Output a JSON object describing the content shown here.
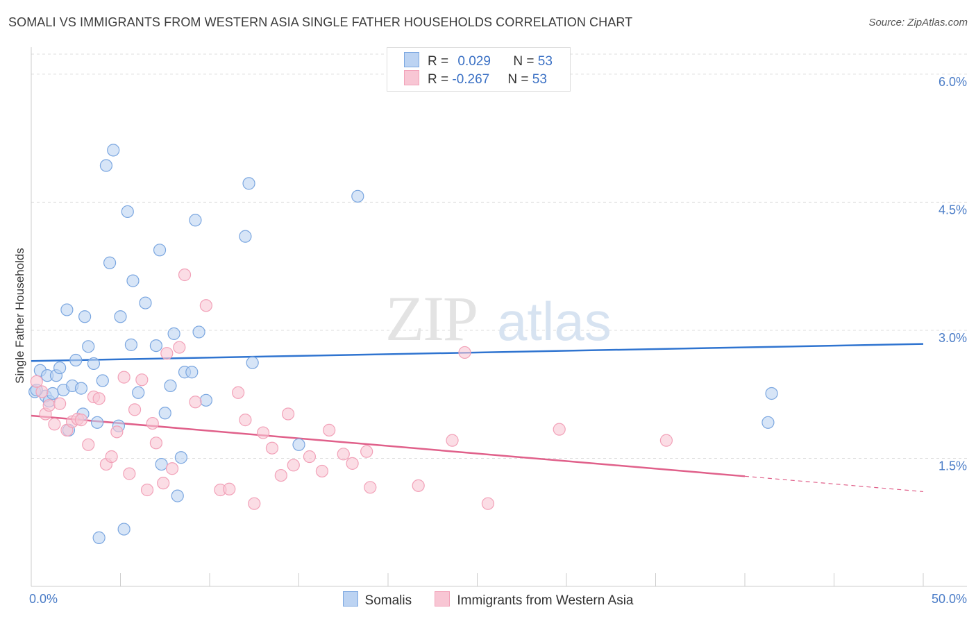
{
  "title": "SOMALI VS IMMIGRANTS FROM WESTERN ASIA SINGLE FATHER HOUSEHOLDS CORRELATION CHART",
  "source": "Source: ZipAtlas.com",
  "watermark": {
    "zip": "ZIP",
    "atlas": "atlas"
  },
  "legend": {
    "rows": [
      {
        "r_label": "R = ",
        "r_value": "0.029",
        "n_label": "N = ",
        "n_value": "53"
      },
      {
        "r_label": "R = ",
        "r_value": "-0.267",
        "n_label": "N = ",
        "n_value": "53"
      }
    ]
  },
  "chart_data": {
    "type": "scatter",
    "ylabel": "Single Father Households",
    "xlim": [
      0,
      50
    ],
    "ylim": [
      0,
      6.3
    ],
    "x_tick_labels": [
      {
        "value": 0,
        "label": "0.0%"
      },
      {
        "value": 50,
        "label": "50.0%"
      }
    ],
    "y_tick_labels": [
      {
        "value": 1.5,
        "label": "1.5%"
      },
      {
        "value": 3.0,
        "label": "3.0%"
      },
      {
        "value": 4.5,
        "label": "4.5%"
      },
      {
        "value": 6.0,
        "label": "6.0%"
      }
    ],
    "grid": "horizontal dashed",
    "legend_position": "top-center",
    "series": [
      {
        "name": "Somalis",
        "color": "#7aa6e0",
        "fill": "#bcd3f2",
        "line_color": "#2f74d0",
        "trend": {
          "x0": 0,
          "y0": 2.64,
          "x1": 50,
          "y1": 2.84
        },
        "points": [
          [
            0.2,
            2.28
          ],
          [
            0.5,
            2.53
          ],
          [
            0.8,
            2.23
          ],
          [
            0.9,
            2.47
          ],
          [
            1.0,
            2.17
          ],
          [
            1.2,
            2.26
          ],
          [
            1.4,
            2.47
          ],
          [
            1.6,
            2.56
          ],
          [
            1.8,
            2.3
          ],
          [
            2.0,
            3.24
          ],
          [
            2.1,
            1.83
          ],
          [
            2.3,
            2.35
          ],
          [
            2.5,
            2.65
          ],
          [
            2.8,
            2.32
          ],
          [
            2.9,
            2.02
          ],
          [
            3.0,
            3.16
          ],
          [
            3.2,
            2.81
          ],
          [
            3.5,
            2.61
          ],
          [
            3.7,
            1.92
          ],
          [
            3.8,
            0.57
          ],
          [
            4.0,
            2.41
          ],
          [
            4.2,
            4.93
          ],
          [
            4.4,
            3.79
          ],
          [
            4.6,
            5.11
          ],
          [
            4.9,
            1.88
          ],
          [
            5.0,
            3.16
          ],
          [
            5.2,
            0.67
          ],
          [
            5.4,
            4.39
          ],
          [
            5.6,
            2.83
          ],
          [
            5.7,
            3.58
          ],
          [
            6.0,
            2.27
          ],
          [
            6.4,
            3.32
          ],
          [
            7.0,
            2.82
          ],
          [
            7.2,
            3.94
          ],
          [
            7.3,
            1.43
          ],
          [
            7.5,
            2.03
          ],
          [
            7.8,
            2.35
          ],
          [
            8.0,
            2.96
          ],
          [
            8.2,
            1.06
          ],
          [
            8.4,
            1.51
          ],
          [
            8.6,
            2.51
          ],
          [
            9.0,
            2.51
          ],
          [
            9.2,
            4.29
          ],
          [
            9.4,
            2.98
          ],
          [
            9.8,
            2.18
          ],
          [
            12.0,
            4.1
          ],
          [
            12.2,
            4.72
          ],
          [
            12.4,
            2.62
          ],
          [
            15.0,
            1.66
          ],
          [
            18.3,
            4.57
          ],
          [
            41.3,
            1.92
          ],
          [
            41.5,
            2.26
          ],
          [
            0.3,
            2.3
          ]
        ]
      },
      {
        "name": "Immigrants from Western Asia",
        "color": "#f2a1b8",
        "fill": "#f8c6d4",
        "line_color": "#e0608a",
        "trend": {
          "x0": 0,
          "y0": 2.0,
          "x1": 40,
          "y1": 1.29
        },
        "trend_dashed": {
          "x0": 40,
          "y0": 1.29,
          "x1": 50,
          "y1": 1.11
        },
        "points": [
          [
            0.3,
            2.4
          ],
          [
            0.6,
            2.28
          ],
          [
            0.8,
            2.02
          ],
          [
            1.0,
            2.12
          ],
          [
            1.3,
            1.9
          ],
          [
            1.6,
            2.14
          ],
          [
            2.0,
            1.83
          ],
          [
            2.3,
            1.93
          ],
          [
            2.6,
            1.96
          ],
          [
            2.8,
            1.95
          ],
          [
            3.2,
            1.66
          ],
          [
            3.5,
            2.22
          ],
          [
            3.8,
            2.2
          ],
          [
            4.2,
            1.43
          ],
          [
            4.5,
            1.52
          ],
          [
            4.8,
            1.81
          ],
          [
            5.2,
            2.45
          ],
          [
            5.5,
            1.32
          ],
          [
            5.8,
            2.07
          ],
          [
            6.2,
            2.42
          ],
          [
            6.5,
            1.13
          ],
          [
            6.8,
            1.91
          ],
          [
            7.0,
            1.68
          ],
          [
            7.4,
            1.21
          ],
          [
            7.6,
            2.73
          ],
          [
            7.9,
            1.38
          ],
          [
            8.3,
            2.8
          ],
          [
            8.6,
            3.65
          ],
          [
            9.2,
            2.16
          ],
          [
            9.8,
            3.29
          ],
          [
            10.6,
            1.13
          ],
          [
            11.1,
            1.14
          ],
          [
            11.6,
            2.27
          ],
          [
            12.0,
            1.95
          ],
          [
            12.5,
            0.97
          ],
          [
            13.0,
            1.8
          ],
          [
            13.5,
            1.62
          ],
          [
            14.0,
            1.3
          ],
          [
            14.7,
            1.42
          ],
          [
            14.4,
            2.02
          ],
          [
            15.6,
            1.52
          ],
          [
            16.3,
            1.35
          ],
          [
            16.7,
            1.83
          ],
          [
            17.5,
            1.55
          ],
          [
            18.0,
            1.44
          ],
          [
            18.8,
            1.58
          ],
          [
            19.0,
            1.16
          ],
          [
            21.7,
            1.18
          ],
          [
            23.6,
            1.71
          ],
          [
            24.3,
            2.74
          ],
          [
            25.6,
            0.97
          ],
          [
            29.6,
            1.84
          ],
          [
            35.6,
            1.71
          ]
        ]
      }
    ]
  }
}
